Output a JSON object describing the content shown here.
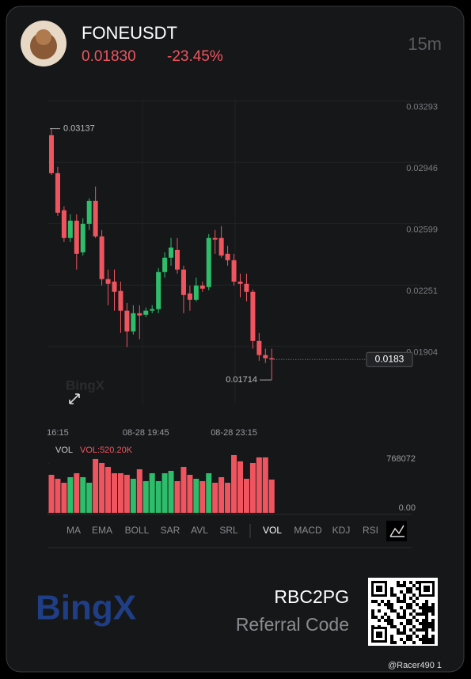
{
  "header": {
    "symbol": "FONEUSDT",
    "price": "0.01830",
    "change": "-23.45%",
    "interval": "15m"
  },
  "chart_data": [
    {
      "type": "candlestick",
      "up_color": "#2ebd6b",
      "down_color": "#f0555f",
      "grid": true,
      "categories": [
        null,
        "16:15",
        null,
        null,
        null,
        null,
        null,
        null,
        null,
        null,
        null,
        null,
        null,
        null,
        null,
        "08-28 19:45",
        null,
        null,
        null,
        null,
        null,
        null,
        null,
        null,
        null,
        null,
        null,
        null,
        null,
        "08-28 23:15",
        null,
        null,
        null,
        null,
        null,
        null
      ],
      "open": [
        0.031,
        0.02885,
        0.02675,
        0.02518,
        0.02616,
        0.02437,
        0.02598,
        0.02728,
        0.02527,
        0.02285,
        0.02271,
        0.02218,
        0.02106,
        0.01989,
        0.02092,
        0.02083,
        0.02106,
        0.02115,
        0.02325,
        0.02406,
        0.0245,
        0.02339,
        0.02204,
        0.02168,
        0.02249,
        0.0224,
        0.02518,
        0.02518,
        0.02428,
        0.02392,
        0.02271,
        0.02258,
        0.02213,
        0.01935,
        0.01855,
        0.01837
      ],
      "high": [
        0.0314,
        0.02921,
        0.02697,
        0.02652,
        0.02652,
        0.0263,
        0.02742,
        0.02809,
        0.02563,
        0.02339,
        0.02339,
        0.02271,
        0.0215,
        0.02137,
        0.02137,
        0.02124,
        0.02137,
        0.02347,
        0.02437,
        0.02518,
        0.02518,
        0.02361,
        0.02249,
        0.02294,
        0.02271,
        0.0254,
        0.02563,
        0.02585,
        0.02473,
        0.02428,
        0.02316,
        0.02316,
        0.02227,
        0.0198,
        0.01891,
        0.01891
      ],
      "low": [
        0.02876,
        0.02643,
        0.02495,
        0.02495,
        0.02339,
        0.02419,
        0.02563,
        0.02518,
        0.02249,
        0.02137,
        0.02106,
        0.0198,
        0.019,
        0.01971,
        0.01944,
        0.0207,
        0.02092,
        0.02092,
        0.02294,
        0.02361,
        0.02316,
        0.02092,
        0.02106,
        0.02159,
        0.02213,
        0.02222,
        0.02428,
        0.02406,
        0.02361,
        0.02249,
        0.02182,
        0.02159,
        0.01891,
        0.01823,
        0.0181,
        0.01714
      ],
      "close": [
        0.02885,
        0.02661,
        0.02518,
        0.02616,
        0.02428,
        0.02598,
        0.02728,
        0.02527,
        0.02285,
        0.02258,
        0.02213,
        0.02106,
        0.01989,
        0.02092,
        0.02079,
        0.02106,
        0.02115,
        0.02325,
        0.02406,
        0.02464,
        0.02339,
        0.02195,
        0.02168,
        0.02249,
        0.02231,
        0.02518,
        0.02509,
        0.02419,
        0.02392,
        0.02271,
        0.02258,
        0.02213,
        0.01935,
        0.01855,
        0.01837,
        0.0183
      ],
      "ylim": [
        0.0158,
        0.0331
      ],
      "yticks": [
        0.03293,
        0.02946,
        0.02599,
        0.02251,
        0.01904
      ],
      "high_mark": 0.03137,
      "low_mark": 0.01714,
      "last_price": 0.0183,
      "watermark": "BingX"
    },
    {
      "type": "bar",
      "legend": "VOL",
      "current_label": "VOL:520.20K",
      "values": [
        594600,
        532700,
        470700,
        557500,
        619400,
        557500,
        470700,
        842400,
        780400,
        718500,
        619400,
        619400,
        594600,
        532700,
        681300,
        495500,
        619400,
        495500,
        619400,
        656600,
        495500,
        718500,
        594600,
        532700,
        495500,
        619400,
        470700,
        557500,
        470700,
        904300,
        805200,
        532700,
        780400,
        867200,
        867200,
        520200
      ],
      "ylim": [
        0,
        966000
      ],
      "yticks": [
        768072,
        {
          "value": 0,
          "label": "0.00"
        }
      ]
    }
  ],
  "tabs": [
    "MA",
    "EMA",
    "BOLL",
    "SAR",
    "AVL",
    "SRL",
    "VOL",
    "MACD",
    "KDJ",
    "RSI"
  ],
  "active_tab": "VOL",
  "footer": {
    "brand": "BingX",
    "code": "RBC2PG",
    "code_label": "Referral Code",
    "user": "@Racer490 1"
  }
}
